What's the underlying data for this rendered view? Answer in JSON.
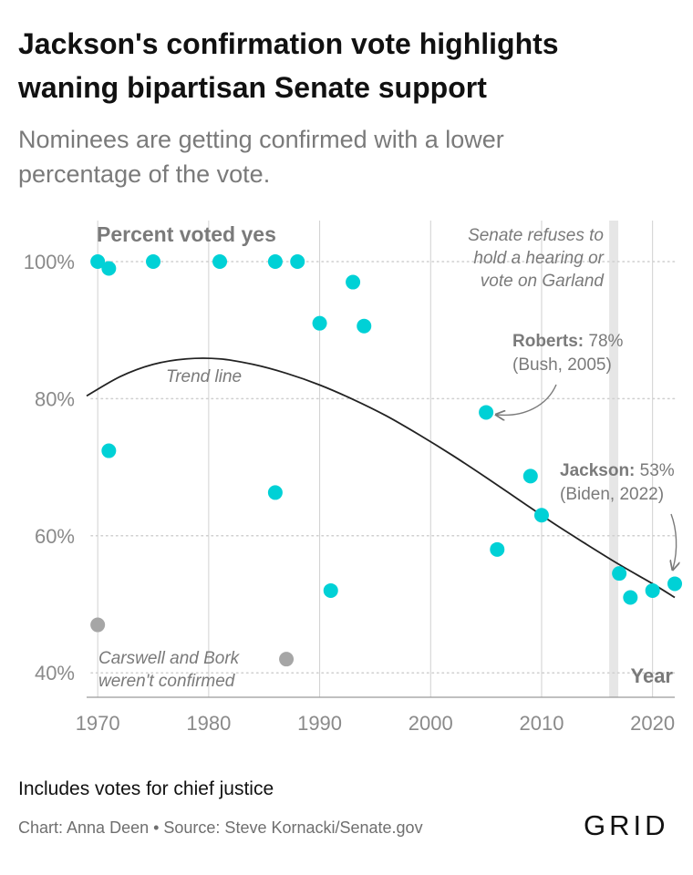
{
  "header": {
    "title_line1": "Jackson's confirmation vote highlights",
    "title_line2": "waning bipartisan Senate support",
    "subtitle_line1": "Nominees are getting confirmed with a lower",
    "subtitle_line2": "percentage of the vote."
  },
  "footer": {
    "note": "Includes votes for chief justice",
    "credit": "Chart: Anna Deen • Source: Steve Kornacki/Senate.gov",
    "logo": "GRID"
  },
  "colors": {
    "confirmed": "#00d1d6",
    "not_confirmed": "#a6a6a6",
    "trend": "#222222",
    "highlight_band": "#e6e6e6",
    "grid": "#cfcfcf",
    "axis_text": "#8a8a8a",
    "annotation_text": "#7a7a7a"
  },
  "chart_data": {
    "type": "scatter",
    "ylabel": "Percent voted yes",
    "xlabel": "Year",
    "xlim": [
      1969,
      2022
    ],
    "ylim": [
      37,
      105
    ],
    "x_ticks": [
      "1970",
      "1980",
      "1990",
      "2000",
      "2010",
      "2020"
    ],
    "y_ticks": [
      "40%",
      "60%",
      "80%",
      "100%"
    ],
    "grid": "dotted horizontal at 40, 60, 80, 100",
    "highlight_band_year": 2016.5,
    "series": [
      {
        "status": "confirmed",
        "points": [
          {
            "x": 1970,
            "y": 100
          },
          {
            "x": 1971,
            "y": 99
          },
          {
            "x": 1971,
            "y": 72.4
          },
          {
            "x": 1975,
            "y": 100
          },
          {
            "x": 1981,
            "y": 100
          },
          {
            "x": 1986,
            "y": 100
          },
          {
            "x": 1986,
            "y": 66.3
          },
          {
            "x": 1988,
            "y": 100
          },
          {
            "x": 1990,
            "y": 91
          },
          {
            "x": 1991,
            "y": 52
          },
          {
            "x": 1993,
            "y": 97
          },
          {
            "x": 1994,
            "y": 90.6
          },
          {
            "x": 2005,
            "y": 78
          },
          {
            "x": 2006,
            "y": 58
          },
          {
            "x": 2009,
            "y": 68.7
          },
          {
            "x": 2010,
            "y": 63
          },
          {
            "x": 2017,
            "y": 54.5
          },
          {
            "x": 2018,
            "y": 51
          },
          {
            "x": 2020,
            "y": 52
          },
          {
            "x": 2022,
            "y": 53
          }
        ]
      },
      {
        "status": "not confirmed",
        "points": [
          {
            "x": 1970,
            "y": 47
          },
          {
            "x": 1987,
            "y": 42
          }
        ]
      }
    ],
    "trend_line": {
      "x": [
        1969,
        1972,
        1975,
        1978,
        1981,
        1984,
        1987,
        1990,
        1993,
        1996,
        1999,
        2002,
        2005,
        2008,
        2011,
        2014,
        2017,
        2020,
        2022
      ],
      "y": [
        80.4,
        83.2,
        85.0,
        85.8,
        85.8,
        85.0,
        83.7,
        82.0,
        79.9,
        77.5,
        74.7,
        71.7,
        68.5,
        65.2,
        61.9,
        58.8,
        55.8,
        53.0,
        51.0
      ]
    },
    "annotations": {
      "trend_label": "Trend line",
      "garland_line1": "Senate refuses to",
      "garland_line2": "hold a hearing or",
      "garland_line3": "vote on Garland",
      "roberts_name": "Roberts:",
      "roberts_value": "78%",
      "roberts_detail": "(Bush, 2005)",
      "jackson_name": "Jackson:",
      "jackson_value": "53%",
      "jackson_detail": "(Biden, 2022)",
      "failed_line1": "Carswell and Bork",
      "failed_line2": "weren't confirmed"
    }
  }
}
